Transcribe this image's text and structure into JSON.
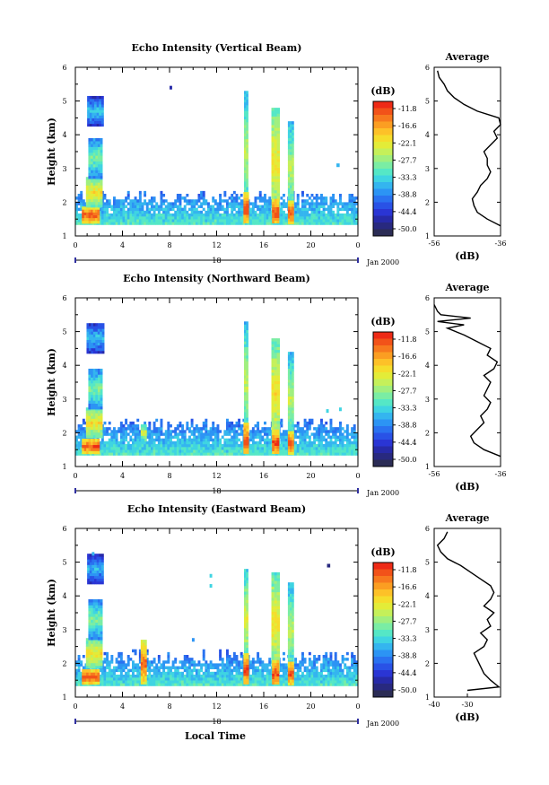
{
  "figure": {
    "date_label": "Jan 2000",
    "xlabel": "Local Time"
  },
  "colorbar": {
    "unit": "(dB)",
    "labels": [
      "-11.8",
      "-16.6",
      "-22.1",
      "-27.7",
      "-33.3",
      "-38.8",
      "-44.4",
      "-50.0"
    ],
    "colors": [
      "#ee2a16",
      "#f25219",
      "#f7791e",
      "#fb9e22",
      "#fdc128",
      "#f5dd2c",
      "#e3ec38",
      "#c5f05a",
      "#a0ef7f",
      "#7aeda4",
      "#55e7c6",
      "#3fd4e2",
      "#34b5ef",
      "#2c94f4",
      "#2a72f0",
      "#2952e6",
      "#2a35d4",
      "#272aa8",
      "#28297f",
      "#2b2c55"
    ]
  },
  "chart_data": [
    {
      "type": "heatmap",
      "title": "Echo Intensity (Vertical Beam)",
      "ylabel": "Height (km)",
      "xlim": [
        0,
        24
      ],
      "ylim": [
        1,
        6
      ],
      "xticks": [
        "0",
        "4",
        "8",
        "12",
        "16",
        "20",
        "0"
      ],
      "yticks": [
        "1",
        "2",
        "3",
        "4",
        "5",
        "6"
      ],
      "day_marker": "18",
      "baseline_top_km": [
        2.0,
        2.35
      ],
      "cells": [
        {
          "x": 1.3,
          "y": 1.62,
          "v": -12,
          "w": 1.5,
          "h": 0.5
        },
        {
          "x": 1.6,
          "y": 2.3,
          "v": -20,
          "w": 1.4,
          "h": 0.9
        },
        {
          "x": 1.7,
          "y": 3.3,
          "v": -27,
          "w": 1.2,
          "h": 1.2
        },
        {
          "x": 1.7,
          "y": 4.7,
          "v": -32,
          "w": 1.4,
          "h": 0.9
        },
        {
          "x": 14.5,
          "y": 3.5,
          "v": -24,
          "w": 0.35,
          "h": 3.6
        },
        {
          "x": 14.5,
          "y": 1.8,
          "v": -12,
          "w": 0.45,
          "h": 1.0
        },
        {
          "x": 17.0,
          "y": 3.2,
          "v": -20,
          "w": 0.7,
          "h": 3.2
        },
        {
          "x": 17.0,
          "y": 1.7,
          "v": -11.8,
          "w": 0.6,
          "h": 0.8
        },
        {
          "x": 18.3,
          "y": 3.0,
          "v": -24,
          "w": 0.5,
          "h": 2.8
        },
        {
          "x": 18.3,
          "y": 1.7,
          "v": -12,
          "w": 0.5,
          "h": 0.7
        },
        {
          "x": 8.1,
          "y": 5.4,
          "v": -44.4,
          "w": 0.2,
          "h": 0.1
        },
        {
          "x": 22.3,
          "y": 3.1,
          "v": -33,
          "w": 0.25,
          "h": 0.1
        }
      ],
      "average": {
        "xlim": [
          -56,
          -36
        ],
        "xticks": [
          "-56",
          "-36"
        ],
        "xlabel": "(dB)",
        "title": "Average",
        "height": [
          1.3,
          1.5,
          1.7,
          1.9,
          2.1,
          2.3,
          2.5,
          2.7,
          2.9,
          3.1,
          3.3,
          3.5,
          3.7,
          3.9,
          4.1,
          4.3,
          4.5,
          4.7,
          4.9,
          5.1,
          5.3,
          5.5,
          5.7,
          5.9
        ],
        "values": [
          -36,
          -40,
          -43,
          -44,
          -44.5,
          -43,
          -42,
          -40,
          -39,
          -40,
          -40,
          -41,
          -39,
          -37,
          -38,
          -36,
          -36.5,
          -43,
          -47,
          -50,
          -52,
          -53,
          -54.5,
          -55
        ]
      }
    },
    {
      "type": "heatmap",
      "title": "Echo Intensity (Northward Beam)",
      "ylabel": "Height (km)",
      "xlim": [
        0,
        24
      ],
      "ylim": [
        1,
        6
      ],
      "xticks": [
        "0",
        "4",
        "8",
        "12",
        "16",
        "20",
        "0"
      ],
      "yticks": [
        "1",
        "2",
        "3",
        "4",
        "5",
        "6"
      ],
      "day_marker": "18",
      "baseline_top_km": [
        2.05,
        2.45
      ],
      "cells": [
        {
          "x": 1.3,
          "y": 1.6,
          "v": -12,
          "w": 1.5,
          "h": 0.45
        },
        {
          "x": 1.6,
          "y": 2.3,
          "v": -20,
          "w": 1.4,
          "h": 0.9
        },
        {
          "x": 1.7,
          "y": 3.3,
          "v": -27,
          "w": 1.2,
          "h": 1.2
        },
        {
          "x": 1.7,
          "y": 4.8,
          "v": -32,
          "w": 1.5,
          "h": 0.9
        },
        {
          "x": 5.8,
          "y": 2.0,
          "v": -22,
          "w": 0.5,
          "h": 0.5
        },
        {
          "x": 14.5,
          "y": 3.5,
          "v": -24,
          "w": 0.35,
          "h": 3.6
        },
        {
          "x": 14.5,
          "y": 1.8,
          "v": -12,
          "w": 0.45,
          "h": 1.0
        },
        {
          "x": 17.0,
          "y": 3.2,
          "v": -20,
          "w": 0.7,
          "h": 3.2
        },
        {
          "x": 17.0,
          "y": 1.7,
          "v": -11.8,
          "w": 0.6,
          "h": 0.8
        },
        {
          "x": 18.3,
          "y": 3.0,
          "v": -24,
          "w": 0.5,
          "h": 2.8
        },
        {
          "x": 18.3,
          "y": 1.7,
          "v": -12,
          "w": 0.5,
          "h": 0.7
        },
        {
          "x": 21.4,
          "y": 2.65,
          "v": -33,
          "w": 0.2,
          "h": 0.1
        },
        {
          "x": 22.5,
          "y": 2.7,
          "v": -33,
          "w": 0.2,
          "h": 0.1
        }
      ],
      "average": {
        "xlim": [
          -56,
          -36
        ],
        "xticks": [
          "-56",
          "-36"
        ],
        "xlabel": "(dB)",
        "title": "Average",
        "height": [
          1.3,
          1.5,
          1.7,
          1.9,
          2.1,
          2.3,
          2.5,
          2.7,
          2.9,
          3.1,
          3.3,
          3.5,
          3.7,
          3.9,
          4.1,
          4.3,
          4.5,
          4.7,
          4.9,
          5.1,
          5.2,
          5.3,
          5.4,
          5.5,
          5.6,
          5.8
        ],
        "values": [
          -36,
          -41,
          -44,
          -45,
          -43,
          -41,
          -42,
          -40,
          -39,
          -41,
          -40,
          -39,
          -41,
          -38,
          -37,
          -40,
          -39,
          -43,
          -47,
          -52,
          -47,
          -55,
          -45,
          -54,
          -55,
          -56
        ]
      }
    },
    {
      "type": "heatmap",
      "title": "Echo Intensity (Eastward Beam)",
      "ylabel": "Height (km)",
      "xlim": [
        0,
        24
      ],
      "ylim": [
        1,
        6
      ],
      "xticks": [
        "0",
        "4",
        "8",
        "12",
        "16",
        "20",
        "0"
      ],
      "yticks": [
        "1",
        "2",
        "3",
        "4",
        "5",
        "6"
      ],
      "day_marker": "18",
      "baseline_top_km": [
        1.95,
        2.45
      ],
      "cells": [
        {
          "x": 1.3,
          "y": 1.6,
          "v": -12,
          "w": 1.5,
          "h": 0.45
        },
        {
          "x": 1.6,
          "y": 2.3,
          "v": -20,
          "w": 1.4,
          "h": 0.9
        },
        {
          "x": 1.7,
          "y": 3.3,
          "v": -27,
          "w": 1.2,
          "h": 1.2
        },
        {
          "x": 1.7,
          "y": 4.8,
          "v": -33,
          "w": 1.4,
          "h": 0.9
        },
        {
          "x": 5.8,
          "y": 2.0,
          "v": -14,
          "w": 0.5,
          "h": 1.4
        },
        {
          "x": 14.5,
          "y": 3.3,
          "v": -22,
          "w": 0.35,
          "h": 3.0
        },
        {
          "x": 14.5,
          "y": 1.8,
          "v": -12,
          "w": 0.45,
          "h": 1.0
        },
        {
          "x": 17.0,
          "y": 3.2,
          "v": -20,
          "w": 0.7,
          "h": 3.0
        },
        {
          "x": 17.0,
          "y": 1.7,
          "v": -11.8,
          "w": 0.6,
          "h": 0.8
        },
        {
          "x": 18.3,
          "y": 3.0,
          "v": -24,
          "w": 0.5,
          "h": 2.8
        },
        {
          "x": 18.3,
          "y": 1.7,
          "v": -12,
          "w": 0.5,
          "h": 0.7
        },
        {
          "x": 11.5,
          "y": 4.6,
          "v": -33,
          "w": 0.2,
          "h": 0.1
        },
        {
          "x": 11.5,
          "y": 4.3,
          "v": -33,
          "w": 0.2,
          "h": 0.1
        },
        {
          "x": 10.0,
          "y": 2.7,
          "v": -33,
          "w": 0.2,
          "h": 0.1
        },
        {
          "x": 21.5,
          "y": 4.9,
          "v": -44.4,
          "w": 0.25,
          "h": 0.1
        },
        {
          "x": 1.5,
          "y": 5.25,
          "v": -33,
          "w": 0.2,
          "h": 0.1
        }
      ],
      "average": {
        "xlim": [
          -40,
          -20
        ],
        "xticks": [
          "-40",
          "-30"
        ],
        "xlabel": "(dB)",
        "title": "Average",
        "height": [
          1.2,
          1.3,
          1.5,
          1.7,
          1.9,
          2.1,
          2.3,
          2.5,
          2.7,
          2.9,
          3.1,
          3.3,
          3.5,
          3.7,
          3.9,
          4.1,
          4.3,
          4.5,
          4.7,
          4.9,
          5.1,
          5.3,
          5.5,
          5.7,
          5.9
        ],
        "values": [
          -30,
          -20.5,
          -23,
          -25,
          -26,
          -27,
          -28,
          -25,
          -24,
          -26,
          -23,
          -24,
          -22,
          -25,
          -23,
          -22,
          -23,
          -26,
          -29,
          -32,
          -36,
          -38,
          -39,
          -37,
          -36
        ]
      }
    }
  ]
}
